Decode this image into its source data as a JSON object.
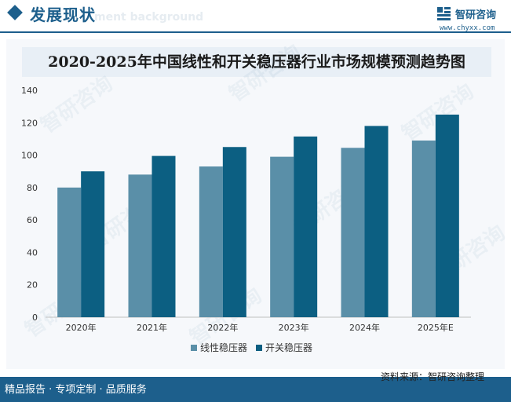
{
  "header": {
    "title": "发展现状",
    "ghost_text": "ment background",
    "brand_name": "智研咨询",
    "brand_url": "www.chyxx.com"
  },
  "watermark_text": "智研咨询",
  "colors": {
    "brand": "#1d5f8c",
    "linear_series": "#5a8fa8",
    "switching_series": "#0c5f82"
  },
  "chart_data": {
    "type": "bar",
    "title": "2020-2025年中国线性和开关稳压器行业市场规模预测趋势图",
    "categories": [
      "2020年",
      "2021年",
      "2022年",
      "2023年",
      "2024年",
      "2025年E"
    ],
    "series": [
      {
        "name": "线性稳压器",
        "values": [
          80,
          88,
          93,
          99,
          104.5,
          109
        ]
      },
      {
        "name": "开关稳压器",
        "values": [
          90,
          99.5,
          105,
          111.5,
          118,
          125
        ]
      }
    ],
    "xlabel": "",
    "ylabel": "",
    "ylim": [
      0,
      140
    ],
    "yticks": [
      0,
      20,
      40,
      60,
      80,
      100,
      120,
      140
    ],
    "grid": false,
    "legend": "bottom-center"
  },
  "footer": {
    "left_text": "精品报告 · 专项定制 · 品质服务",
    "source": "资料来源：智研咨询整理"
  }
}
